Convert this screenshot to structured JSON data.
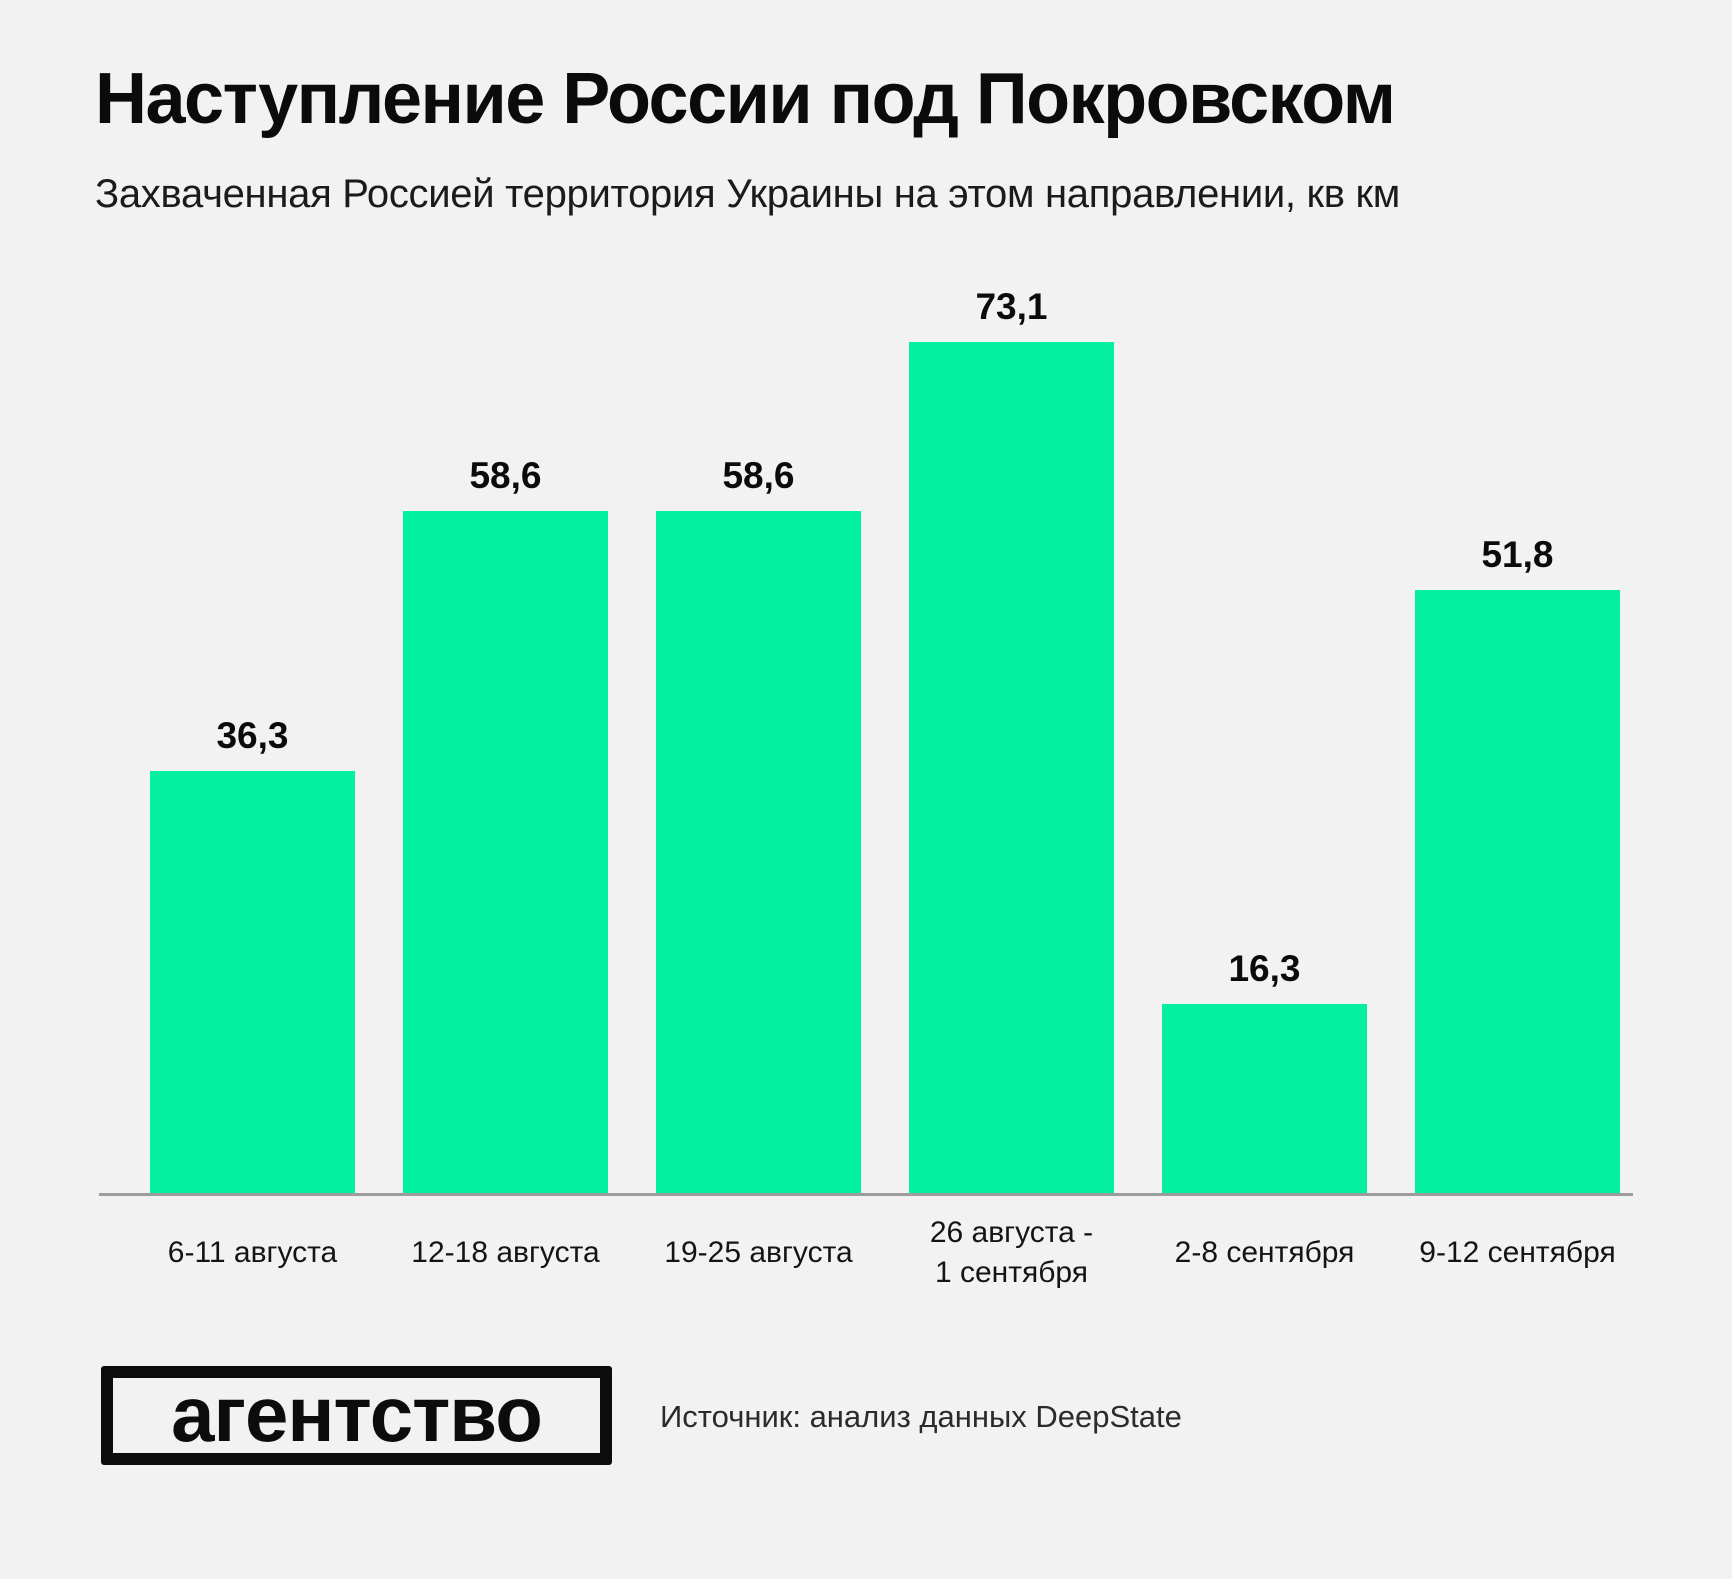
{
  "page": {
    "background_color": "#F1F2F1",
    "text_color": "#0C0C0C"
  },
  "header": {
    "title": "Наступление России под Покровском",
    "subtitle": "Захваченная Россией территория Украины на этом направлении, кв км"
  },
  "chart_data": {
    "type": "bar",
    "title": "Наступление России под Покровском",
    "subtitle": "Захваченная Россией территория Украины на этом направлении, кв км",
    "unit": "кв км",
    "categories": [
      "6-11 августа",
      "12-18 августа",
      "19-25 августа",
      "26 августа - 1 сентября",
      "2-8 сентября",
      "9-12 сентября"
    ],
    "categories_display": [
      "6-11 августа",
      "12-18 августа",
      "19-25 августа",
      "26 августа  -\n1 сентября",
      "2-8 сентября",
      "9-12 сентября"
    ],
    "values": [
      36.3,
      58.6,
      58.6,
      73.1,
      16.3,
      51.8
    ],
    "display_values": [
      "36,3",
      "58,6",
      "58,6",
      "73,1",
      "16,3",
      "51,8"
    ],
    "bar_color": "#04F0A1",
    "axis_line_color": "#9C9C9C",
    "ylim": [
      0,
      73.1
    ],
    "grid": false,
    "legend_position": "none",
    "value_labels_position": "above-bars",
    "xlabel": "",
    "ylabel": ""
  },
  "footer": {
    "logo_text": "агентство",
    "source_text": "Источник: анализ данных DeepState"
  }
}
